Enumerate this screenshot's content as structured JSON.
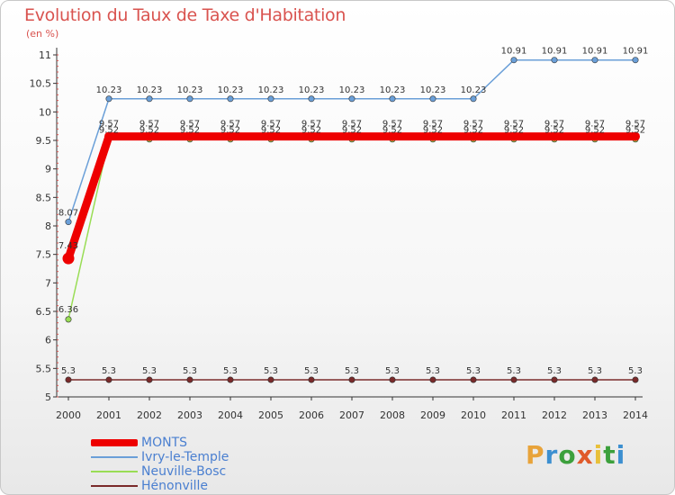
{
  "title": "Evolution du Taux de Taxe d'Habitation",
  "subtitle": "(en %)",
  "logo": {
    "letters": [
      "P",
      "r",
      "o",
      "x",
      "i",
      "t",
      "i"
    ],
    "colors": [
      "#e8a33a",
      "#3c8fd0",
      "#3ca03c",
      "#e05a2a",
      "#e8c03a",
      "#3ca03c",
      "#3c8fd0"
    ]
  },
  "chart_data": {
    "type": "line",
    "title": "Evolution du Taux de Taxe d'Habitation",
    "ylabel": "(en %)",
    "xlabel": "",
    "categories": [
      "2000",
      "2001",
      "2002",
      "2003",
      "2004",
      "2005",
      "2006",
      "2007",
      "2008",
      "2009",
      "2010",
      "2011",
      "2012",
      "2013",
      "2014"
    ],
    "ylim": [
      5,
      11
    ],
    "yticks": [
      "5",
      "5.5",
      "6",
      "6.5",
      "7",
      "7.5",
      "8",
      "8.5",
      "9",
      "9.5",
      "10",
      "10.5",
      "11"
    ],
    "grid": false,
    "legend_position": "bottom-left",
    "series": [
      {
        "name": "MONTS",
        "color": "#ee0000",
        "values": [
          7.43,
          9.57,
          9.57,
          9.57,
          9.57,
          9.57,
          9.57,
          9.57,
          9.57,
          9.57,
          9.57,
          9.57,
          9.57,
          9.57,
          9.57
        ],
        "labels": [
          "7.43",
          "9.57",
          "9.57",
          "9.57",
          "9.57",
          "9.57",
          "9.57",
          "9.57",
          "9.57",
          "9.57",
          "9.57",
          "9.57",
          "9.57",
          "9.57",
          "9.57"
        ]
      },
      {
        "name": "Ivry-le-Temple",
        "color": "#6a9fd8",
        "values": [
          8.07,
          10.23,
          10.23,
          10.23,
          10.23,
          10.23,
          10.23,
          10.23,
          10.23,
          10.23,
          10.23,
          10.91,
          10.91,
          10.91,
          10.91
        ],
        "labels": [
          "8.07",
          "10.23",
          "10.23",
          "10.23",
          "10.23",
          "10.23",
          "10.23",
          "10.23",
          "10.23",
          "10.23",
          "10.23",
          "10.91",
          "10.91",
          "10.91",
          "10.91"
        ]
      },
      {
        "name": "Neuville-Bosc",
        "color": "#99dd55",
        "values": [
          6.36,
          9.52,
          9.52,
          9.52,
          9.52,
          9.52,
          9.52,
          9.52,
          9.52,
          9.52,
          9.52,
          9.52,
          9.52,
          9.52,
          9.52
        ],
        "labels": [
          "6.36",
          "9.52",
          "9.52",
          "9.52",
          "9.52",
          "9.52",
          "9.52",
          "9.52",
          "9.52",
          "9.52",
          "9.52",
          "9.52",
          "9.52",
          "9.52",
          "9.52"
        ]
      },
      {
        "name": "Hénonville",
        "color": "#7a2a2a",
        "values": [
          5.3,
          5.3,
          5.3,
          5.3,
          5.3,
          5.3,
          5.3,
          5.3,
          5.3,
          5.3,
          5.3,
          5.3,
          5.3,
          5.3,
          5.3
        ],
        "labels": [
          "5.3",
          "5.3",
          "5.3",
          "5.3",
          "5.3",
          "5.3",
          "5.3",
          "5.3",
          "5.3",
          "5.3",
          "5.3",
          "5.3",
          "5.3",
          "5.3",
          "5.3"
        ]
      }
    ]
  }
}
